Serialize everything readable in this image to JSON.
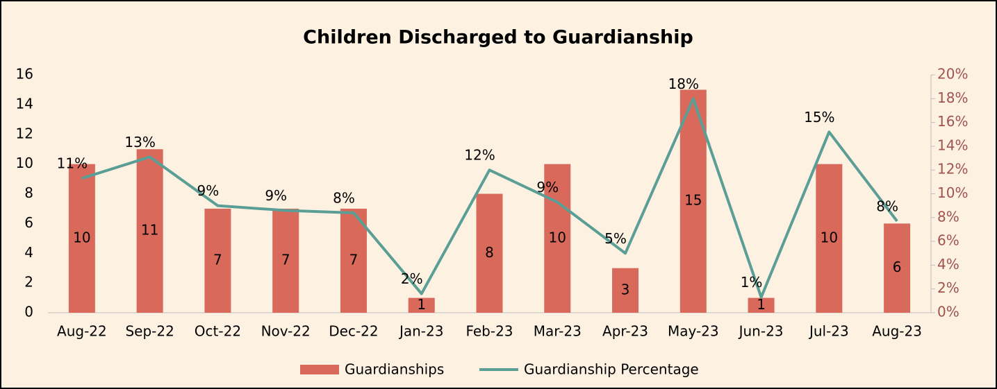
{
  "chart_data": {
    "type": "bar_line",
    "title": "Children Discharged to Guardianship",
    "categories": [
      "Aug-22",
      "Sep-22",
      "Oct-22",
      "Nov-22",
      "Dec-22",
      "Jan-23",
      "Feb-23",
      "Mar-23",
      "Apr-23",
      "May-23",
      "Jun-23",
      "Jul-23",
      "Aug-23"
    ],
    "series": [
      {
        "name": "Guardianships",
        "type": "bar",
        "color": "#d9695a",
        "values": [
          10,
          11,
          7,
          7,
          7,
          1,
          8,
          10,
          3,
          15,
          1,
          10,
          6
        ]
      },
      {
        "name": "Guardianship Percentage",
        "type": "line",
        "axis": "y2",
        "color": "#5b9e96",
        "values": [
          11.3,
          13.1,
          9.0,
          8.6,
          8.4,
          1.6,
          12.0,
          9.3,
          5.0,
          18.0,
          1.3,
          15.2,
          7.7
        ],
        "value_labels": [
          "11%",
          "13%",
          "9%",
          "9%",
          "8%",
          "2%",
          "12%",
          "9%",
          "5%",
          "18%",
          "1%",
          "15%",
          "8%"
        ]
      }
    ],
    "ylim": [
      0,
      16
    ],
    "yticks": [
      0,
      2,
      4,
      6,
      8,
      10,
      12,
      14,
      16
    ],
    "y2lim": [
      0,
      20
    ],
    "y2ticks": [
      {
        "value": 0,
        "label": "0%"
      },
      {
        "value": 2,
        "label": "2%"
      },
      {
        "value": 4,
        "label": "4%"
      },
      {
        "value": 6,
        "label": "6%"
      },
      {
        "value": 8,
        "label": "8%"
      },
      {
        "value": 10,
        "label": "10%"
      },
      {
        "value": 12,
        "label": "12%"
      },
      {
        "value": 14,
        "label": "14%"
      },
      {
        "value": 16,
        "label": "16%"
      },
      {
        "value": 18,
        "label": "18%"
      },
      {
        "value": 20,
        "label": "20%"
      }
    ],
    "legend": "bottom",
    "grid": false
  }
}
